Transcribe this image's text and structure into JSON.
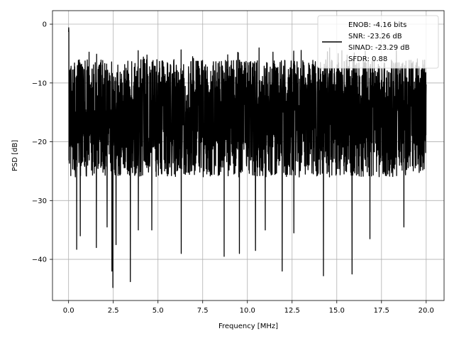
{
  "chart_data": {
    "type": "line",
    "title": "",
    "xlabel": "Frequency [MHz]",
    "ylabel": "PSD [dB]",
    "xlim": [
      -0.9,
      21.0
    ],
    "ylim": [
      -47.0,
      2.3
    ],
    "xticks": [
      0.0,
      2.5,
      5.0,
      7.5,
      10.0,
      12.5,
      15.0,
      17.5,
      20.0
    ],
    "xtick_labels": [
      "0.0",
      "2.5",
      "5.0",
      "7.5",
      "10.0",
      "12.5",
      "15.0",
      "17.5",
      "20.0"
    ],
    "yticks": [
      0,
      -10,
      -20,
      -30,
      -40
    ],
    "ytick_labels": [
      "0",
      "−10",
      "−20",
      "−30",
      "−40"
    ],
    "grid": true,
    "legend_position": "top-right",
    "series": [
      {
        "color": "#000000",
        "x_start": 0.0,
        "x_end": 20.0,
        "noise_floor_mean": -17,
        "upper_envelope": -6,
        "lower_spikes": [
          {
            "x": 0.45,
            "y": -38.3
          },
          {
            "x": 0.65,
            "y": -36.0
          },
          {
            "x": 1.55,
            "y": -38.0
          },
          {
            "x": 2.15,
            "y": -34.5
          },
          {
            "x": 2.42,
            "y": -42.0
          },
          {
            "x": 2.48,
            "y": -44.8
          },
          {
            "x": 2.65,
            "y": -37.5
          },
          {
            "x": 3.45,
            "y": -43.8
          },
          {
            "x": 3.9,
            "y": -35.0
          },
          {
            "x": 4.65,
            "y": -35.0
          },
          {
            "x": 6.3,
            "y": -39.0
          },
          {
            "x": 8.7,
            "y": -39.5
          },
          {
            "x": 9.55,
            "y": -39.0
          },
          {
            "x": 10.45,
            "y": -38.5
          },
          {
            "x": 11.0,
            "y": -35.0
          },
          {
            "x": 11.95,
            "y": -42.0
          },
          {
            "x": 12.6,
            "y": -35.5
          },
          {
            "x": 14.25,
            "y": -42.8
          },
          {
            "x": 15.85,
            "y": -42.5
          },
          {
            "x": 16.85,
            "y": -36.5
          },
          {
            "x": 18.75,
            "y": -34.5
          }
        ],
        "peak": {
          "x": 0.0,
          "y": 0.0
        }
      }
    ],
    "legend": {
      "lines": [
        "ENOB: -4.16 bits",
        "SNR: -23.26 dB",
        "SINAD: -23.29 dB",
        "SFDR: 0.88"
      ]
    }
  }
}
